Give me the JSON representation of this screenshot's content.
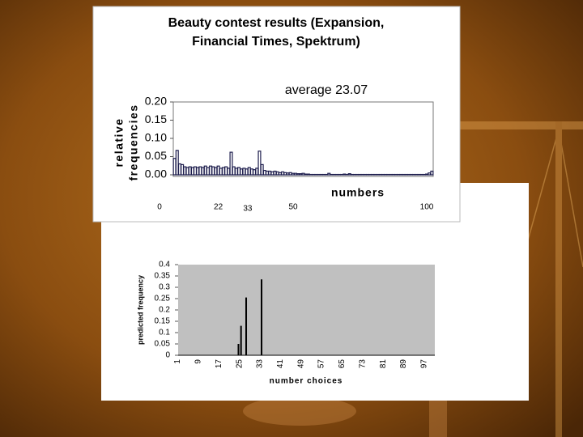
{
  "chart_data": [
    {
      "type": "bar",
      "title": [
        "Beauty contest results (Expansion,",
        "Financial Times, Spektrum)"
      ],
      "annotation": "average 23.07",
      "y_label": [
        "relative",
        "frequencies"
      ],
      "x_label": "numbers",
      "x": [
        0,
        1,
        2,
        3,
        4,
        5,
        6,
        7,
        8,
        9,
        10,
        11,
        12,
        13,
        14,
        15,
        16,
        17,
        18,
        19,
        20,
        21,
        22,
        23,
        24,
        25,
        26,
        27,
        28,
        29,
        30,
        31,
        32,
        33,
        34,
        35,
        36,
        37,
        38,
        39,
        40,
        41,
        42,
        43,
        44,
        45,
        46,
        47,
        48,
        49,
        50,
        51,
        52,
        53,
        54,
        55,
        56,
        57,
        58,
        59,
        60,
        61,
        62,
        63,
        64,
        65,
        66,
        67,
        68,
        69,
        70,
        71,
        72,
        73,
        74,
        75,
        76,
        77,
        78,
        79,
        80,
        81,
        82,
        83,
        84,
        85,
        86,
        87,
        88,
        89,
        90,
        91,
        92,
        93,
        94,
        95,
        96,
        97,
        98,
        99,
        100
      ],
      "values": [
        0.045,
        0.067,
        0.03,
        0.028,
        0.022,
        0.02,
        0.022,
        0.02,
        0.022,
        0.02,
        0.022,
        0.02,
        0.024,
        0.02,
        0.024,
        0.022,
        0.02,
        0.024,
        0.018,
        0.02,
        0.022,
        0.018,
        0.062,
        0.022,
        0.018,
        0.02,
        0.016,
        0.018,
        0.016,
        0.02,
        0.016,
        0.014,
        0.018,
        0.065,
        0.028,
        0.012,
        0.01,
        0.01,
        0.008,
        0.01,
        0.008,
        0.006,
        0.008,
        0.006,
        0.005,
        0.006,
        0.004,
        0.004,
        0.003,
        0.003,
        0.004,
        0.002,
        0.002,
        0.001,
        0.001,
        0.001,
        0.001,
        0.001,
        0.001,
        0.001,
        0.004,
        0.001,
        0.001,
        0.001,
        0.001,
        0.001,
        0.002,
        0.001,
        0.003,
        0.001,
        0.001,
        0.001,
        0.001,
        0.001,
        0.001,
        0.001,
        0.001,
        0.001,
        0.001,
        0.001,
        0.001,
        0.001,
        0.001,
        0.001,
        0.001,
        0.001,
        0.001,
        0.001,
        0.001,
        0.001,
        0.001,
        0.001,
        0.001,
        0.001,
        0.001,
        0.001,
        0.001,
        0.001,
        0.002,
        0.005,
        0.01
      ],
      "color": "#1c1c4c",
      "xlim": [
        -0.5,
        100.5
      ],
      "xticks": [
        0,
        22,
        33,
        50,
        100
      ],
      "ylim": [
        0,
        0.2
      ],
      "yticks": [
        {
          "value": 0,
          "label": "0.00"
        },
        {
          "value": 0.05,
          "label": "0.05"
        },
        {
          "value": 0.1,
          "label": "0.10"
        },
        {
          "value": 0.15,
          "label": "0.15"
        },
        {
          "value": 0.2,
          "label": "0.20"
        }
      ]
    },
    {
      "type": "bar",
      "y_label": "predicted frequency",
      "x_label": "number choices",
      "categories": [
        "1",
        null,
        null,
        null,
        null,
        null,
        null,
        null,
        "9",
        null,
        null,
        null,
        null,
        null,
        null,
        null,
        "17",
        null,
        null,
        null,
        null,
        null,
        null,
        null,
        "25",
        null,
        null,
        null,
        null,
        null,
        null,
        null,
        "33",
        null,
        null,
        null,
        null,
        null,
        null,
        null,
        "41",
        null,
        null,
        null,
        null,
        null,
        null,
        null,
        "49",
        null,
        null,
        null,
        null,
        null,
        null,
        null,
        "57",
        null,
        null,
        null,
        null,
        null,
        null,
        null,
        "65",
        null,
        null,
        null,
        null,
        null,
        null,
        null,
        "73",
        null,
        null,
        null,
        null,
        null,
        null,
        null,
        "81",
        null,
        null,
        null,
        null,
        null,
        null,
        null,
        "89",
        null,
        null,
        null,
        null,
        null,
        null,
        null,
        "97",
        null,
        null,
        null
      ],
      "values": [
        0,
        0,
        0,
        0,
        0,
        0,
        0,
        0,
        0,
        0,
        0,
        0,
        0,
        0,
        0,
        0,
        0,
        0,
        0,
        0,
        0,
        0,
        0,
        0.05,
        0.13,
        0,
        0.255,
        0,
        0,
        0,
        0,
        0,
        0.335,
        0,
        0,
        0,
        0,
        0,
        0,
        0,
        0,
        0,
        0,
        0,
        0,
        0,
        0,
        0,
        0,
        0,
        0,
        0,
        0,
        0,
        0,
        0,
        0,
        0,
        0,
        0,
        0,
        0,
        0,
        0,
        0,
        0,
        0,
        0,
        0,
        0,
        0,
        0,
        0,
        0,
        0,
        0,
        0,
        0,
        0,
        0,
        0,
        0,
        0,
        0,
        0,
        0,
        0,
        0,
        0,
        0,
        0,
        0,
        0,
        0,
        0,
        0,
        0,
        0,
        0,
        0
      ],
      "color": "#000000",
      "plot_background": "#c0c0c0",
      "ylim": [
        0,
        0.4
      ],
      "yticks": [
        0,
        0.05,
        0.1,
        0.15,
        0.2,
        0.25,
        0.3,
        0.35,
        0.4
      ]
    }
  ]
}
